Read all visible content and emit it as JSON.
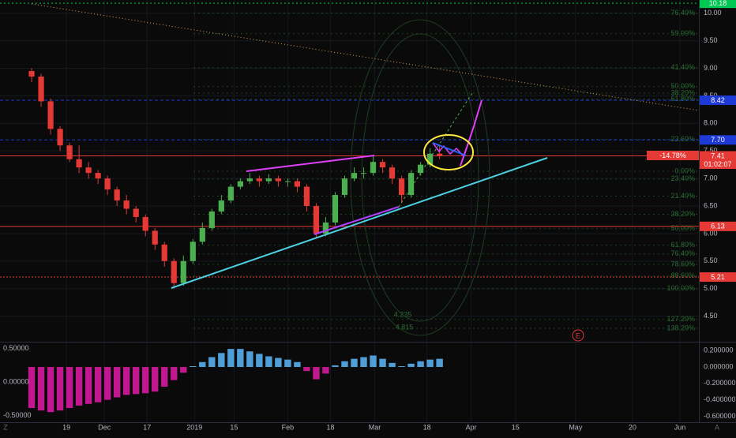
{
  "chart_data": [
    {
      "type": "candlestick",
      "x": [
        10,
        13,
        16,
        19,
        22,
        25,
        28,
        31,
        34,
        37,
        40,
        43,
        46,
        49,
        52,
        55,
        58,
        61,
        64,
        67,
        70,
        73,
        76,
        79,
        82,
        85,
        88,
        91,
        94,
        97,
        100,
        103,
        106,
        109,
        112,
        115,
        118,
        121,
        124,
        127,
        130,
        133,
        136,
        139
      ],
      "open": [
        8.95,
        8.85,
        8.4,
        7.9,
        7.6,
        7.35,
        7.2,
        7.1,
        7.0,
        6.8,
        6.6,
        6.45,
        6.3,
        6.05,
        5.8,
        5.5,
        5.1,
        5.5,
        5.85,
        6.1,
        6.4,
        6.6,
        6.85,
        6.95,
        7.0,
        6.95,
        7.0,
        6.95,
        6.95,
        6.85,
        6.5,
        6.0,
        6.2,
        6.7,
        7.0,
        7.1,
        7.1,
        7.3,
        7.2,
        7.0,
        6.7,
        7.1,
        7.25,
        7.45
      ],
      "high": [
        9.0,
        8.9,
        8.45,
        7.95,
        7.65,
        7.6,
        7.3,
        7.15,
        7.05,
        6.85,
        6.7,
        6.5,
        6.35,
        6.1,
        5.85,
        5.55,
        5.6,
        5.9,
        6.2,
        6.45,
        6.7,
        6.9,
        7.0,
        7.1,
        7.05,
        7.08,
        7.05,
        7.0,
        7.0,
        6.9,
        6.55,
        6.3,
        6.75,
        7.05,
        7.2,
        7.2,
        7.4,
        7.35,
        7.25,
        7.05,
        7.15,
        7.3,
        7.55,
        7.6
      ],
      "low": [
        8.75,
        8.3,
        7.8,
        7.5,
        7.3,
        7.1,
        7.0,
        6.9,
        6.7,
        6.5,
        6.35,
        6.2,
        5.95,
        5.7,
        5.4,
        5.0,
        5.05,
        5.45,
        5.8,
        6.05,
        6.35,
        6.55,
        6.8,
        6.9,
        6.85,
        6.9,
        6.85,
        6.85,
        6.75,
        6.4,
        5.92,
        5.95,
        6.15,
        6.65,
        6.95,
        7.0,
        7.05,
        7.1,
        6.9,
        6.55,
        6.65,
        7.05,
        7.2,
        7.35
      ],
      "close": [
        8.85,
        8.4,
        7.9,
        7.6,
        7.35,
        7.2,
        7.1,
        7.0,
        6.8,
        6.6,
        6.45,
        6.3,
        6.05,
        5.8,
        5.5,
        5.1,
        5.5,
        5.85,
        6.1,
        6.4,
        6.6,
        6.85,
        6.95,
        7.0,
        6.95,
        7.0,
        6.95,
        6.95,
        6.85,
        6.5,
        6.0,
        6.2,
        6.7,
        7.0,
        7.1,
        7.1,
        7.3,
        7.2,
        7.0,
        6.7,
        7.1,
        7.25,
        7.45,
        7.41
      ],
      "up_color": "#4caf50",
      "down_color": "#e53935",
      "xlim": [
        0,
        221
      ],
      "xticks": [
        {
          "value": 21,
          "label": "19"
        },
        {
          "value": 33,
          "label": "Dec"
        },
        {
          "value": 46.5,
          "label": "17"
        },
        {
          "value": 61.5,
          "label": "2019"
        },
        {
          "value": 74,
          "label": "15"
        },
        {
          "value": 91,
          "label": "Feb"
        },
        {
          "value": 104.5,
          "label": "18"
        },
        {
          "value": 118.5,
          "label": "Mar"
        },
        {
          "value": 135,
          "label": "18"
        },
        {
          "value": 149,
          "label": "Apr"
        },
        {
          "value": 163,
          "label": "15"
        },
        {
          "value": 182,
          "label": "May"
        },
        {
          "value": 200,
          "label": "20"
        },
        {
          "value": 215,
          "label": "Jun"
        }
      ],
      "ylim": [
        4.05,
        10.24
      ],
      "yticks": [
        {
          "value": 4.5,
          "label": "4.50"
        },
        {
          "value": 5,
          "label": "5.00"
        },
        {
          "value": 5.5,
          "label": "5.50"
        },
        {
          "value": 6,
          "label": "6.00"
        },
        {
          "value": 6.5,
          "label": "6.50"
        },
        {
          "value": 7,
          "label": "7.00"
        },
        {
          "value": 7.5,
          "label": "7.50"
        },
        {
          "value": 8,
          "label": "8.00"
        },
        {
          "value": 8.5,
          "label": "8.50"
        },
        {
          "value": 9,
          "label": "9.00"
        },
        {
          "value": 9.5,
          "label": "9.50"
        },
        {
          "value": 10,
          "label": "10.00"
        }
      ],
      "grid": true,
      "price_lines": [
        {
          "value": 10.18,
          "color": "#00c853",
          "dash": "2,3"
        },
        {
          "value": 8.42,
          "color": "#1e3ad6",
          "dash": "4,3"
        },
        {
          "value": 7.7,
          "label": "7.70",
          "color": "#1e3ad6",
          "dash": "4,3"
        },
        {
          "value": 7.41,
          "color": "#e53935",
          "dash": ""
        },
        {
          "value": 6.13,
          "color": "#e53935",
          "dash": ""
        },
        {
          "value": 5.21,
          "color": "#e53935",
          "dash": "2,2"
        }
      ],
      "fib_levels": [
        {
          "label": "76.40%",
          "value": 10.0
        },
        {
          "label": "59.00%",
          "value": 9.63
        },
        {
          "label": "41.40%",
          "value": 9.01
        },
        {
          "label": "50.00%",
          "value": 8.67
        },
        {
          "label": "38.20%",
          "value": 8.55
        },
        {
          "label": "61.80%",
          "value": 8.44
        },
        {
          "label": "23.60%",
          "value": 7.71
        },
        {
          "label": "0.00%",
          "value": 7.13
        },
        {
          "label": "23.40%",
          "value": 6.99
        },
        {
          "label": "21.40%",
          "value": 6.68
        },
        {
          "label": "38.20%",
          "value": 6.35
        },
        {
          "label": "50.00%",
          "value": 6.09
        },
        {
          "label": "61.80%",
          "value": 5.79
        },
        {
          "label": "76.40%",
          "value": 5.63
        },
        {
          "label": "78.60%",
          "value": 5.44
        },
        {
          "label": "88.60%",
          "value": 5.23
        },
        {
          "label": "100.00%",
          "value": 5.0
        },
        {
          "label": "127.20%",
          "value": 4.44
        },
        {
          "label": "138.20%",
          "value": 4.28
        }
      ],
      "fib_color": "#2a6b34"
    },
    {
      "type": "histogram",
      "x": [
        10,
        13,
        16,
        19,
        22,
        25,
        28,
        31,
        34,
        37,
        40,
        43,
        46,
        49,
        52,
        55,
        58,
        61,
        64,
        67,
        70,
        73,
        76,
        79,
        82,
        85,
        88,
        91,
        94,
        97,
        100,
        103,
        106,
        109,
        112,
        115,
        118,
        121,
        124,
        127,
        130,
        133,
        136,
        139
      ],
      "values": [
        -0.5,
        -0.53,
        -0.55,
        -0.53,
        -0.5,
        -0.47,
        -0.45,
        -0.43,
        -0.4,
        -0.37,
        -0.34,
        -0.33,
        -0.32,
        -0.3,
        -0.24,
        -0.16,
        -0.07,
        0.01,
        0.06,
        0.12,
        0.17,
        0.22,
        0.22,
        0.19,
        0.16,
        0.13,
        0.11,
        0.09,
        0.06,
        -0.05,
        -0.15,
        -0.08,
        0.02,
        0.07,
        0.1,
        0.12,
        0.14,
        0.1,
        0.05,
        0.01,
        0.04,
        0.07,
        0.09,
        0.1
      ],
      "positive_color": "#4f9ed8",
      "negative_color": "#c2188f",
      "ylim": [
        -0.673,
        0.279
      ],
      "yticks": [
        {
          "value": 0.2,
          "label": "0.200000"
        },
        {
          "value": 0,
          "label": "0.000000"
        },
        {
          "value": -0.2,
          "label": "-0.200000"
        },
        {
          "value": -0.4,
          "label": "-0.400000"
        },
        {
          "value": -0.6,
          "label": "-0.600000"
        }
      ],
      "y2lim": [
        -0.6,
        0.565
      ],
      "y2ticks": [
        {
          "value": 0.5,
          "label": "0.50000"
        },
        {
          "value": 0,
          "label": "0.00000"
        },
        {
          "value": -0.5,
          "label": "-0.50000"
        }
      ]
    }
  ],
  "labels": {
    "change": "-14.78%",
    "countdown": "01:02:07",
    "ellipse_low": "4.235",
    "ellipse_high": "4.815",
    "earnings": "E",
    "left_button": "Z",
    "right_button": "A"
  }
}
